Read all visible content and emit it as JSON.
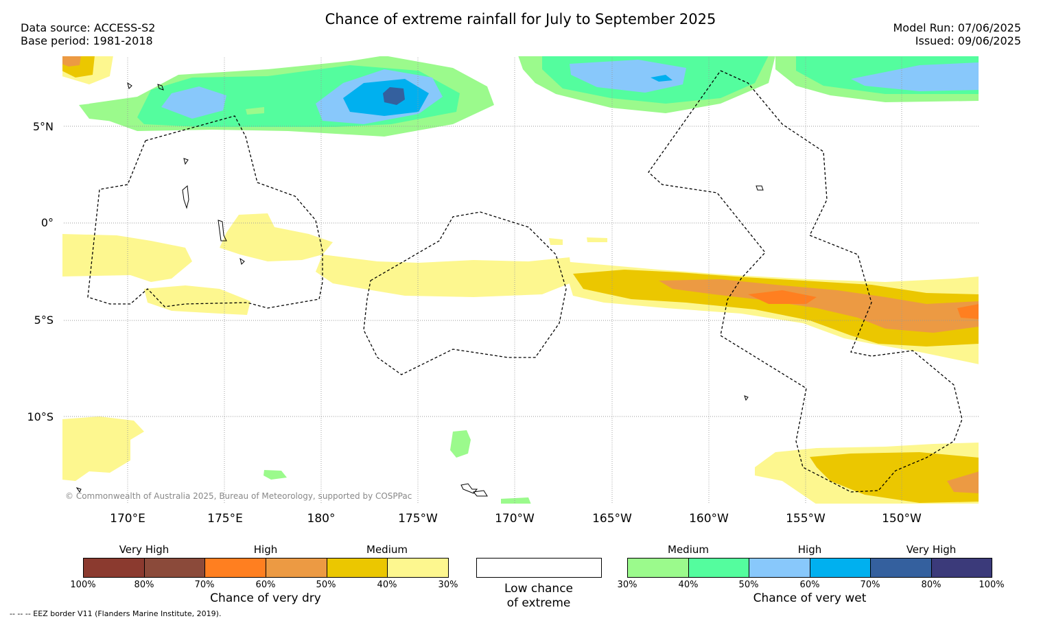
{
  "title": "Chance of extreme rainfall for July to September 2025",
  "data_source": "Data source: ACCESS-S2",
  "base_period": "Base period: 1981-2018",
  "model_run": "Model Run: 07/06/2025",
  "issued": "Issued: 09/06/2025",
  "copyright": "© Commonwealth of Australia 2025, Bureau of Meteorology, supported by COSPPac",
  "footer": "--  --  -- EEZ border V11 (Flanders Marine Institute, 2019).",
  "lat_labels": [
    "5°N",
    "0°",
    "5°S",
    "10°S"
  ],
  "lon_labels": [
    "170°E",
    "175°E",
    "180°",
    "175°W",
    "170°W",
    "165°W",
    "160°W",
    "155°W",
    "150°W"
  ],
  "legend": {
    "dry": {
      "headings": [
        "Very High",
        "High",
        "Medium"
      ],
      "ticks": [
        "100%",
        "80%",
        "70%",
        "60%",
        "50%",
        "40%",
        "30%"
      ],
      "colors": [
        "#8b3a2f",
        "#8b4a3a",
        "#ff7f20",
        "#ec9a43",
        "#ebc700",
        "#fdf78f"
      ],
      "title": "Chance of very dry"
    },
    "low": {
      "title_line1": "Low chance",
      "title_line2": "of extreme",
      "color": "#ffffff"
    },
    "wet": {
      "headings": [
        "Medium",
        "High",
        "Very High"
      ],
      "ticks": [
        "30%",
        "40%",
        "50%",
        "60%",
        "70%",
        "80%",
        "100%"
      ],
      "colors": [
        "#9bfa8c",
        "#54fd9e",
        "#88c8fb",
        "#00b0ef",
        "#34609e",
        "#3b3a7a"
      ],
      "title": "Chance of very wet"
    }
  }
}
